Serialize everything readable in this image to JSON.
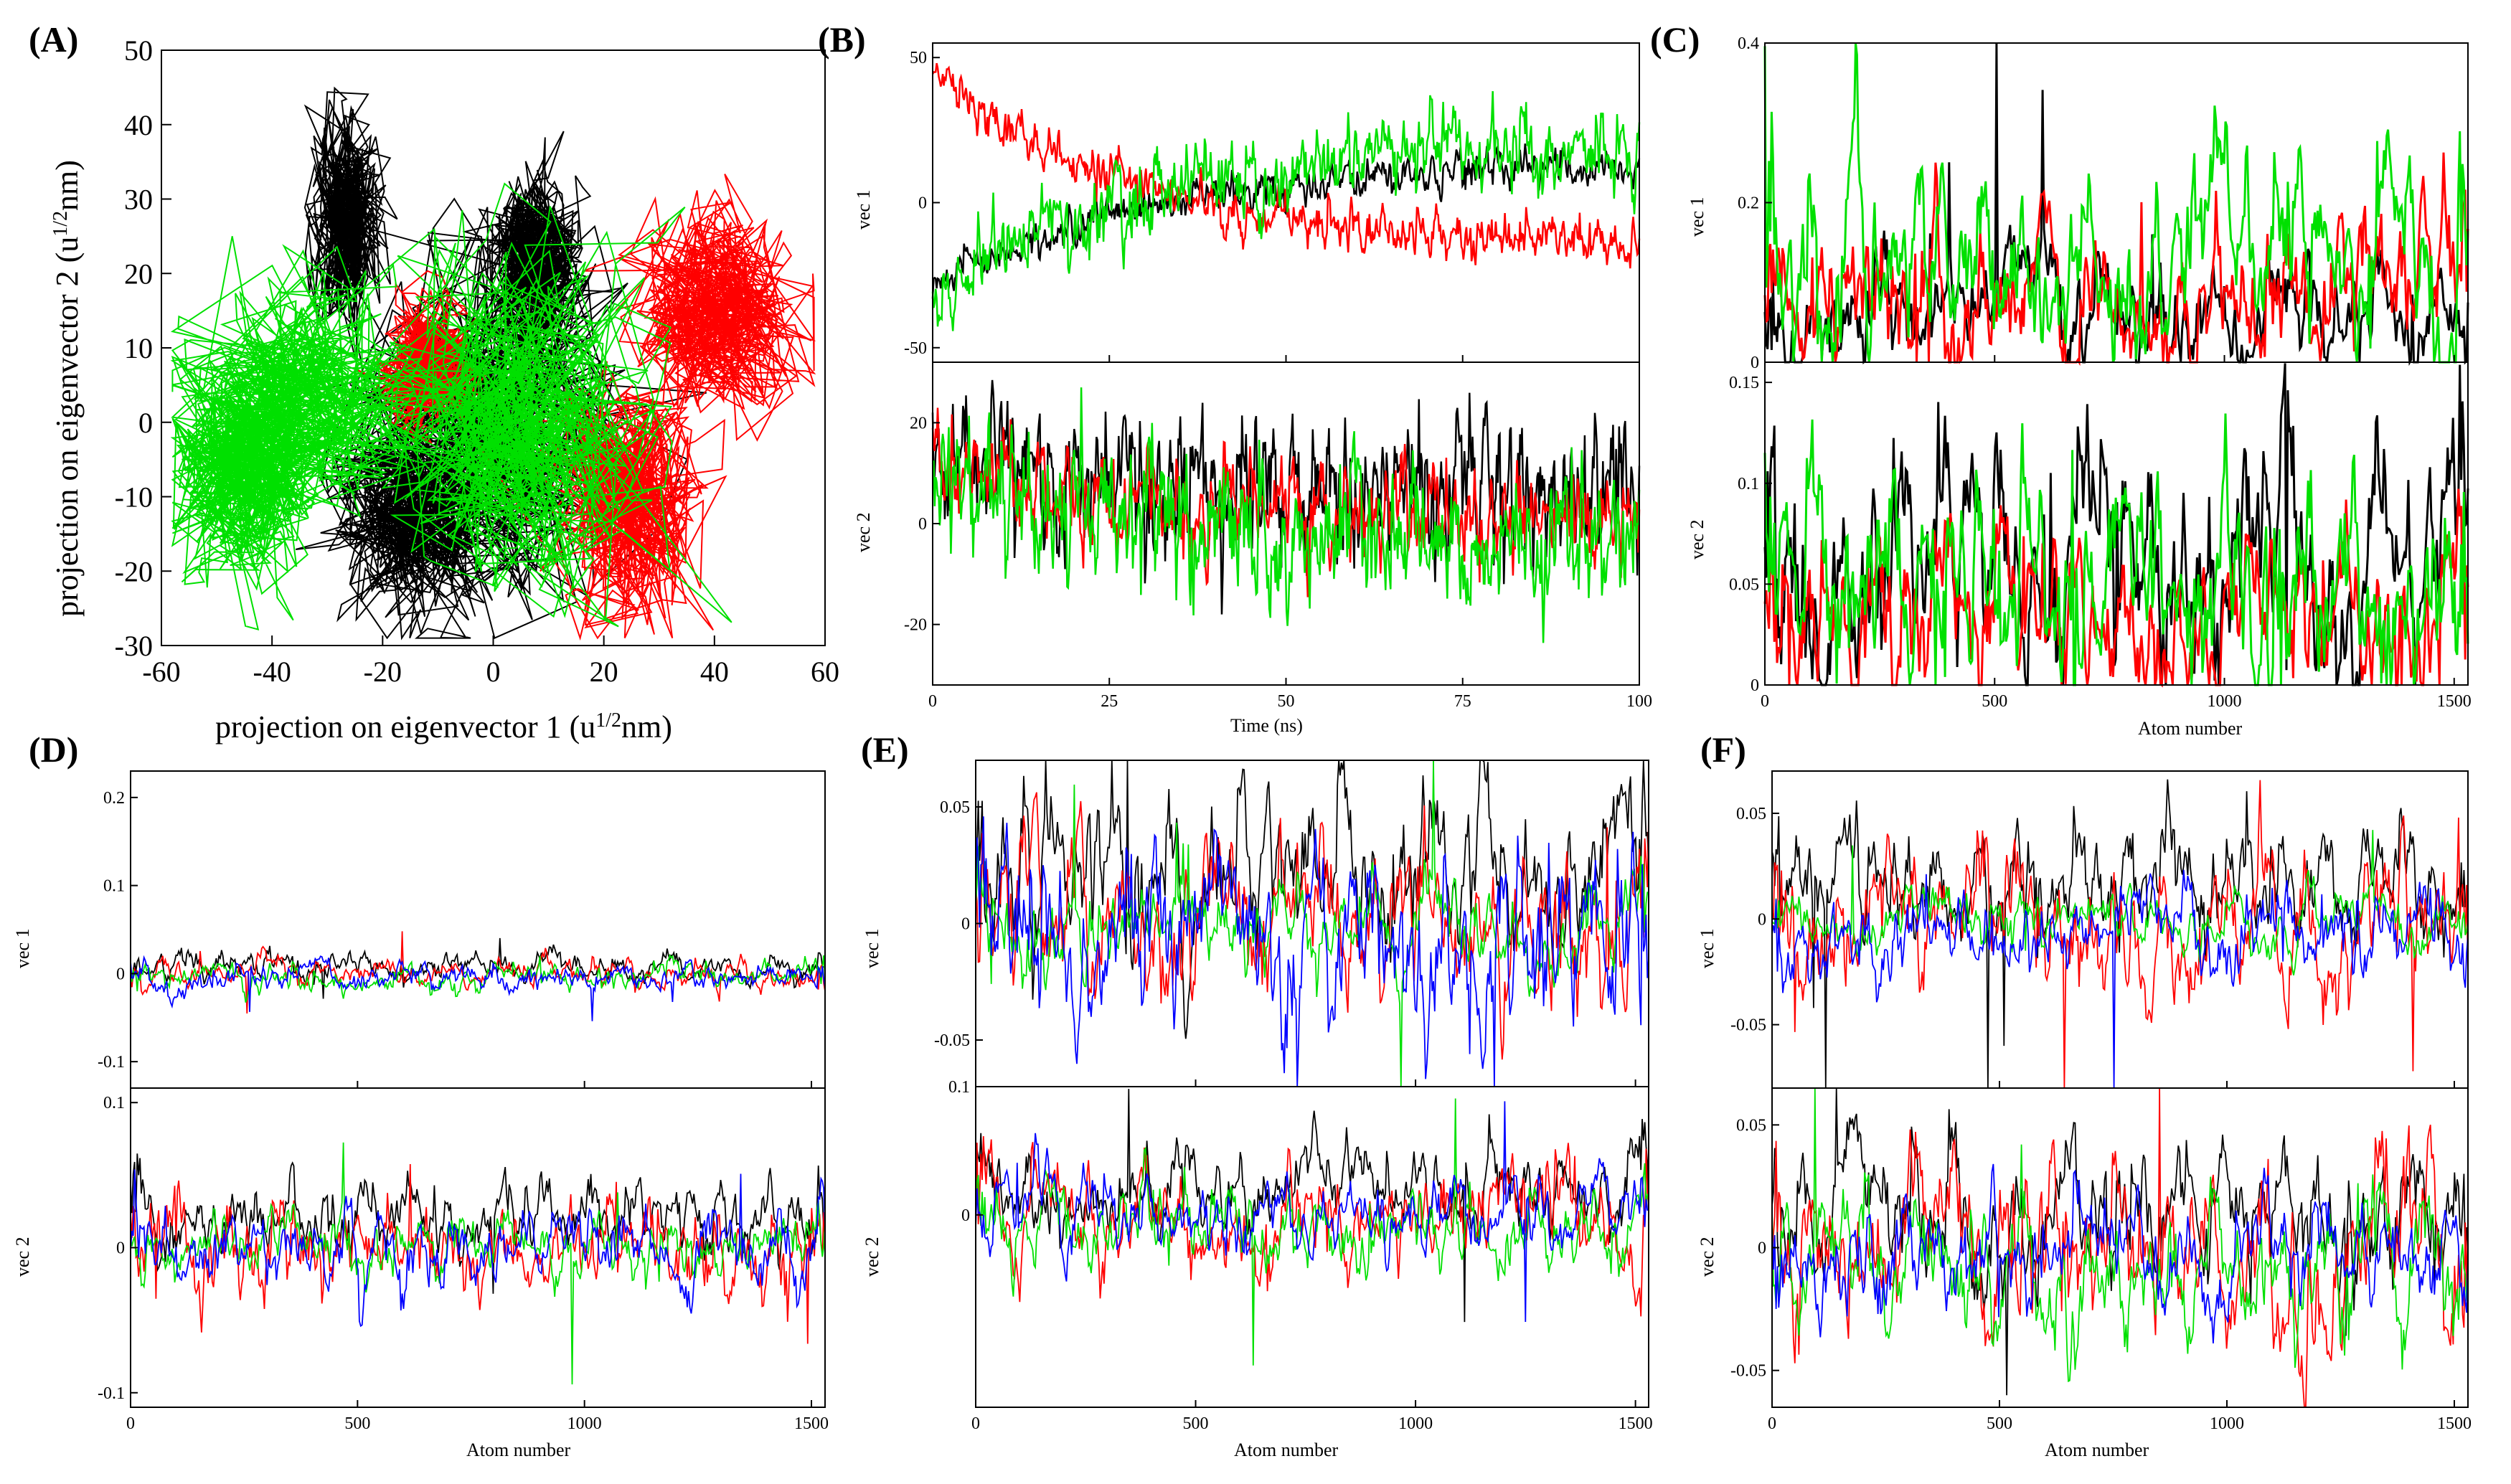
{
  "colors": {
    "black": "#000000",
    "red": "#ff0000",
    "green": "#00e000",
    "blue": "#0000ff"
  },
  "chart_data": [
    {
      "type": "scatter",
      "panel": "(A)",
      "xlabel": "projection on eigenvector 1 (u",
      "xlabel_sup": "1/2",
      "xlabel_tail": "nm)",
      "ylabel": "projection on eigenvector 2 (u",
      "ylabel_sup": "1/2",
      "ylabel_tail": "nm)",
      "xlim": [
        -60,
        60
      ],
      "ylim": [
        -30,
        50
      ],
      "xticks": [
        -60,
        -40,
        -20,
        0,
        20,
        40,
        60
      ],
      "yticks": [
        -30,
        -20,
        -10,
        0,
        10,
        20,
        30,
        40,
        50
      ],
      "series": [
        {
          "name": "black",
          "color": "#000000",
          "clusters": [
            {
              "cx": -27,
              "cy": 28,
              "sx": 3,
              "sy": 6
            },
            {
              "cx": 8,
              "cy": 22,
              "sx": 4,
              "sy": 5
            },
            {
              "cx": -15,
              "cy": -12,
              "sx": 6,
              "sy": 6
            },
            {
              "cx": 0,
              "cy": 0,
              "sx": 12,
              "sy": 10
            }
          ]
        },
        {
          "name": "red",
          "color": "#ff0000",
          "clusters": [
            {
              "cx": 40,
              "cy": 15,
              "sx": 7,
              "sy": 6
            },
            {
              "cx": 25,
              "cy": -10,
              "sx": 6,
              "sy": 7
            },
            {
              "cx": -12,
              "cy": 8,
              "sx": 4,
              "sy": 4
            }
          ]
        },
        {
          "name": "green",
          "color": "#00e000",
          "clusters": [
            {
              "cx": -35,
              "cy": 3,
              "sx": 10,
              "sy": 7
            },
            {
              "cx": 5,
              "cy": 0,
              "sx": 11,
              "sy": 10
            },
            {
              "cx": -45,
              "cy": -8,
              "sx": 6,
              "sy": 6
            }
          ]
        }
      ]
    },
    {
      "type": "line",
      "panel": "(B)",
      "xlabel": "Time (ns)",
      "xticks": [
        0,
        25,
        50,
        75,
        100
      ],
      "xlim": [
        0,
        100
      ],
      "subplots": [
        {
          "ylabel": "vec 1",
          "ylim": [
            -55,
            55
          ],
          "yticks": [
            -50,
            0,
            50
          ],
          "series": [
            {
              "name": "black",
              "color": "#000000",
              "start": -30,
              "end": 12,
              "noise": 4
            },
            {
              "name": "red",
              "color": "#ff0000",
              "start": 45,
              "end": -14,
              "noise": 5
            },
            {
              "name": "green",
              "color": "#00e000",
              "start": -35,
              "end": 20,
              "noise": 9
            }
          ]
        },
        {
          "ylabel": "vec 2",
          "ylim": [
            -32,
            32
          ],
          "yticks": [
            -20,
            0,
            20
          ],
          "series": [
            {
              "name": "black",
              "color": "#000000",
              "start": 15,
              "end": 5,
              "noise": 9
            },
            {
              "name": "red",
              "color": "#ff0000",
              "start": 15,
              "end": 0,
              "noise": 6
            },
            {
              "name": "green",
              "color": "#00e000",
              "start": 10,
              "end": -5,
              "noise": 8
            }
          ]
        }
      ]
    },
    {
      "type": "line",
      "panel": "(C)",
      "xlabel": "Atom number",
      "xticks": [
        0,
        500,
        1000,
        1500
      ],
      "xlim": [
        0,
        1530
      ],
      "subplots": [
        {
          "ylabel": "vec 1",
          "ylim": [
            0,
            0.4
          ],
          "yticks": [
            0,
            0.2,
            0.4
          ],
          "series": [
            {
              "name": "black",
              "color": "#000000",
              "base": 0.06,
              "amp": 0.05
            },
            {
              "name": "red",
              "color": "#ff0000",
              "base": 0.08,
              "amp": 0.07
            },
            {
              "name": "green",
              "color": "#00e000",
              "base": 0.11,
              "amp": 0.09
            }
          ]
        },
        {
          "ylabel": "vec 2",
          "ylim": [
            0,
            0.16
          ],
          "yticks": [
            0,
            0.05,
            0.1,
            0.15
          ],
          "series": [
            {
              "name": "black",
              "color": "#000000",
              "base": 0.06,
              "amp": 0.04
            },
            {
              "name": "red",
              "color": "#ff0000",
              "base": 0.04,
              "amp": 0.03
            },
            {
              "name": "green",
              "color": "#00e000",
              "base": 0.06,
              "amp": 0.04
            }
          ]
        }
      ]
    },
    {
      "type": "line",
      "panel": "(D)",
      "xlabel": "Atom number",
      "xticks": [
        0,
        500,
        1000,
        1500
      ],
      "xlim": [
        0,
        1530
      ],
      "subplots": [
        {
          "ylabel": "vec 1",
          "ylim": [
            -0.13,
            0.23
          ],
          "yticks": [
            -0.1,
            0,
            0.1,
            0.2
          ],
          "series": [
            {
              "name": "black",
              "color": "#000000",
              "base": 0.008,
              "amp": 0.012
            },
            {
              "name": "red",
              "color": "#ff0000",
              "base": 0.0,
              "amp": 0.012
            },
            {
              "name": "green",
              "color": "#00e000",
              "base": 0.0,
              "amp": 0.012
            },
            {
              "name": "blue",
              "color": "#0000ff",
              "base": -0.002,
              "amp": 0.012
            }
          ]
        },
        {
          "ylabel": "vec 2",
          "ylim": [
            -0.11,
            0.11
          ],
          "yticks": [
            -0.1,
            0,
            0.1
          ],
          "series": [
            {
              "name": "black",
              "color": "#000000",
              "base": 0.02,
              "amp": 0.02
            },
            {
              "name": "red",
              "color": "#ff0000",
              "base": 0.0,
              "amp": 0.025
            },
            {
              "name": "green",
              "color": "#00e000",
              "base": 0.0,
              "amp": 0.015
            },
            {
              "name": "blue",
              "color": "#0000ff",
              "base": 0.0,
              "amp": 0.02
            }
          ]
        }
      ]
    },
    {
      "type": "line",
      "panel": "(E)",
      "xlabel": "Atom number",
      "xticks": [
        0,
        500,
        1000,
        1500
      ],
      "xlim": [
        0,
        1530
      ],
      "subplots": [
        {
          "ylabel": "vec 1",
          "ylim": [
            -0.07,
            0.07
          ],
          "yticks": [
            -0.05,
            0,
            0.05
          ],
          "series": [
            {
              "name": "black",
              "color": "#000000",
              "base": 0.02,
              "amp": 0.025
            },
            {
              "name": "red",
              "color": "#ff0000",
              "base": 0.0,
              "amp": 0.025
            },
            {
              "name": "green",
              "color": "#00e000",
              "base": 0.0,
              "amp": 0.015
            },
            {
              "name": "blue",
              "color": "#0000ff",
              "base": 0.0,
              "amp": 0.03
            }
          ]
        },
        {
          "ylabel": "vec 2",
          "ylim": [
            -0.15,
            0.1
          ],
          "yticks": [
            0,
            0.1
          ],
          "series": [
            {
              "name": "black",
              "color": "#000000",
              "base": 0.02,
              "amp": 0.025
            },
            {
              "name": "red",
              "color": "#ff0000",
              "base": 0.0,
              "amp": 0.03
            },
            {
              "name": "green",
              "color": "#00e000",
              "base": -0.01,
              "amp": 0.025
            },
            {
              "name": "blue",
              "color": "#0000ff",
              "base": 0.0,
              "amp": 0.02
            }
          ]
        }
      ]
    },
    {
      "type": "line",
      "panel": "(F)",
      "xlabel": "Atom number",
      "xticks": [
        0,
        500,
        1000,
        1500
      ],
      "xlim": [
        0,
        1530
      ],
      "subplots": [
        {
          "ylabel": "vec 1",
          "ylim": [
            -0.08,
            0.07
          ],
          "yticks": [
            -0.05,
            0,
            0.05
          ],
          "series": [
            {
              "name": "black",
              "color": "#000000",
              "base": 0.02,
              "amp": 0.02
            },
            {
              "name": "red",
              "color": "#ff0000",
              "base": 0.0,
              "amp": 0.025
            },
            {
              "name": "green",
              "color": "#00e000",
              "base": 0.0,
              "amp": 0.01
            },
            {
              "name": "blue",
              "color": "#0000ff",
              "base": -0.005,
              "amp": 0.015
            }
          ]
        },
        {
          "ylabel": "vec 2",
          "ylim": [
            -0.065,
            0.065
          ],
          "yticks": [
            -0.05,
            0,
            0.05
          ],
          "series": [
            {
              "name": "black",
              "color": "#000000",
              "base": 0.02,
              "amp": 0.02
            },
            {
              "name": "red",
              "color": "#ff0000",
              "base": 0.0,
              "amp": 0.025
            },
            {
              "name": "green",
              "color": "#00e000",
              "base": -0.01,
              "amp": 0.02
            },
            {
              "name": "blue",
              "color": "#0000ff",
              "base": -0.005,
              "amp": 0.015
            }
          ]
        }
      ]
    }
  ]
}
